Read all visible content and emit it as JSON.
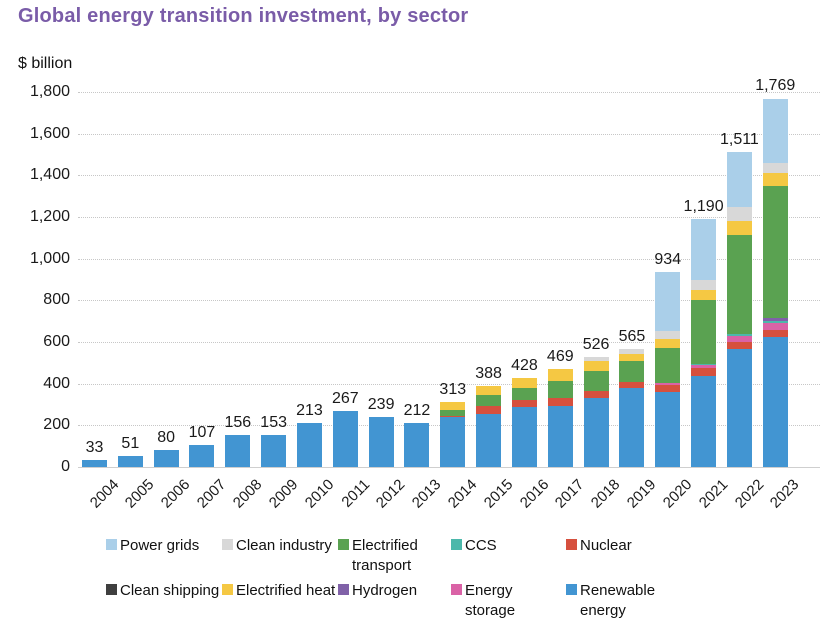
{
  "title": "Global energy transition investment, by sector",
  "y_axis_unit": "$ billion",
  "chart_data": {
    "type": "bar",
    "stacked": true,
    "title": "Global energy transition investment, by sector",
    "xlabel": "",
    "ylabel": "$ billion",
    "ylim": [
      0,
      1800
    ],
    "yticks": [
      0,
      200,
      400,
      600,
      800,
      1000,
      1200,
      1400,
      1600,
      1800
    ],
    "ytick_labels": [
      "0",
      "200",
      "400",
      "600",
      "800",
      "1,000",
      "1,200",
      "1,400",
      "1,600",
      "1,800"
    ],
    "grid": "horizontal dotted lines, on",
    "legend_position": "bottom, two rows of five",
    "categories": [
      "2004",
      "2005",
      "2006",
      "2007",
      "2008",
      "2009",
      "2010",
      "2011",
      "2012",
      "2013",
      "2014",
      "2015",
      "2016",
      "2017",
      "2018",
      "2019",
      "2020",
      "2021",
      "2022",
      "2023"
    ],
    "totals": [
      33,
      51,
      80,
      107,
      156,
      153,
      213,
      267,
      239,
      212,
      313,
      388,
      428,
      469,
      526,
      565,
      934,
      1190,
      1511,
      1769
    ],
    "total_labels": [
      "33",
      "51",
      "80",
      "107",
      "156",
      "153",
      "213",
      "267",
      "239",
      "212",
      "313",
      "388",
      "428",
      "469",
      "526",
      "565",
      "934",
      "1,190",
      "1,511",
      "1,769"
    ],
    "series": [
      {
        "name": "Renewable energy",
        "color": "#4295d2",
        "values": [
          33,
          51,
          80,
          107,
          156,
          153,
          213,
          267,
          239,
          212,
          238,
          255,
          287,
          293,
          330,
          378,
          361,
          438,
          567,
          623
        ]
      },
      {
        "name": "Nuclear",
        "color": "#d6503e",
        "values": [
          0,
          0,
          0,
          0,
          0,
          0,
          0,
          0,
          0,
          0,
          7,
          40,
          35,
          37,
          37,
          30,
          35,
          35,
          32,
          33
        ]
      },
      {
        "name": "Energy storage",
        "color": "#da62a6",
        "values": [
          0,
          0,
          0,
          0,
          0,
          0,
          0,
          0,
          0,
          0,
          0,
          0,
          0,
          0,
          0,
          0,
          8,
          19,
          30,
          36
        ]
      },
      {
        "name": "CCS",
        "color": "#4cb8ab",
        "values": [
          0,
          0,
          0,
          0,
          0,
          0,
          0,
          0,
          0,
          0,
          0,
          0,
          0,
          0,
          0,
          0,
          0,
          2,
          8,
          11
        ]
      },
      {
        "name": "Hydrogen",
        "color": "#8061a8",
        "values": [
          0,
          0,
          0,
          0,
          0,
          0,
          0,
          0,
          0,
          0,
          0,
          0,
          0,
          0,
          0,
          0,
          0,
          2,
          3,
          10
        ]
      },
      {
        "name": "Electrified transport",
        "color": "#5aa251",
        "values": [
          0,
          0,
          0,
          0,
          0,
          0,
          0,
          0,
          0,
          0,
          30,
          50,
          56,
          84,
          93,
          100,
          165,
          308,
          473,
          634
        ]
      },
      {
        "name": "Electrified heat",
        "color": "#f5c843",
        "values": [
          0,
          0,
          0,
          0,
          0,
          0,
          0,
          0,
          0,
          0,
          38,
          43,
          50,
          55,
          48,
          35,
          45,
          48,
          70,
          63
        ]
      },
      {
        "name": "Clean industry",
        "color": "#d8d8d8",
        "values": [
          0,
          0,
          0,
          0,
          0,
          0,
          0,
          0,
          0,
          0,
          0,
          0,
          0,
          0,
          18,
          22,
          40,
          46,
          66,
          49
        ]
      },
      {
        "name": "Clean shipping",
        "color": "#3f3f3f",
        "values": [
          0,
          0,
          0,
          0,
          0,
          0,
          0,
          0,
          0,
          0,
          0,
          0,
          0,
          0,
          0,
          0,
          0,
          0,
          0,
          0
        ]
      },
      {
        "name": "Power grids",
        "color": "#aacfe9",
        "values": [
          0,
          0,
          0,
          0,
          0,
          0,
          0,
          0,
          0,
          0,
          0,
          0,
          0,
          0,
          0,
          0,
          280,
          292,
          262,
          310
        ]
      }
    ],
    "stacking_order_note": "series array is bottom-to-top stack order",
    "legend_order": [
      "Power grids",
      "Clean industry",
      "Electrified transport",
      "CCS",
      "Nuclear",
      "Clean shipping",
      "Electrified heat",
      "Hydrogen",
      "Energy storage",
      "Renewable energy"
    ]
  },
  "colors": {
    "title": "#7a5ca8",
    "axis_text": "#1a1a1a",
    "gridline": "#c7c7c7",
    "background": "#ffffff"
  }
}
